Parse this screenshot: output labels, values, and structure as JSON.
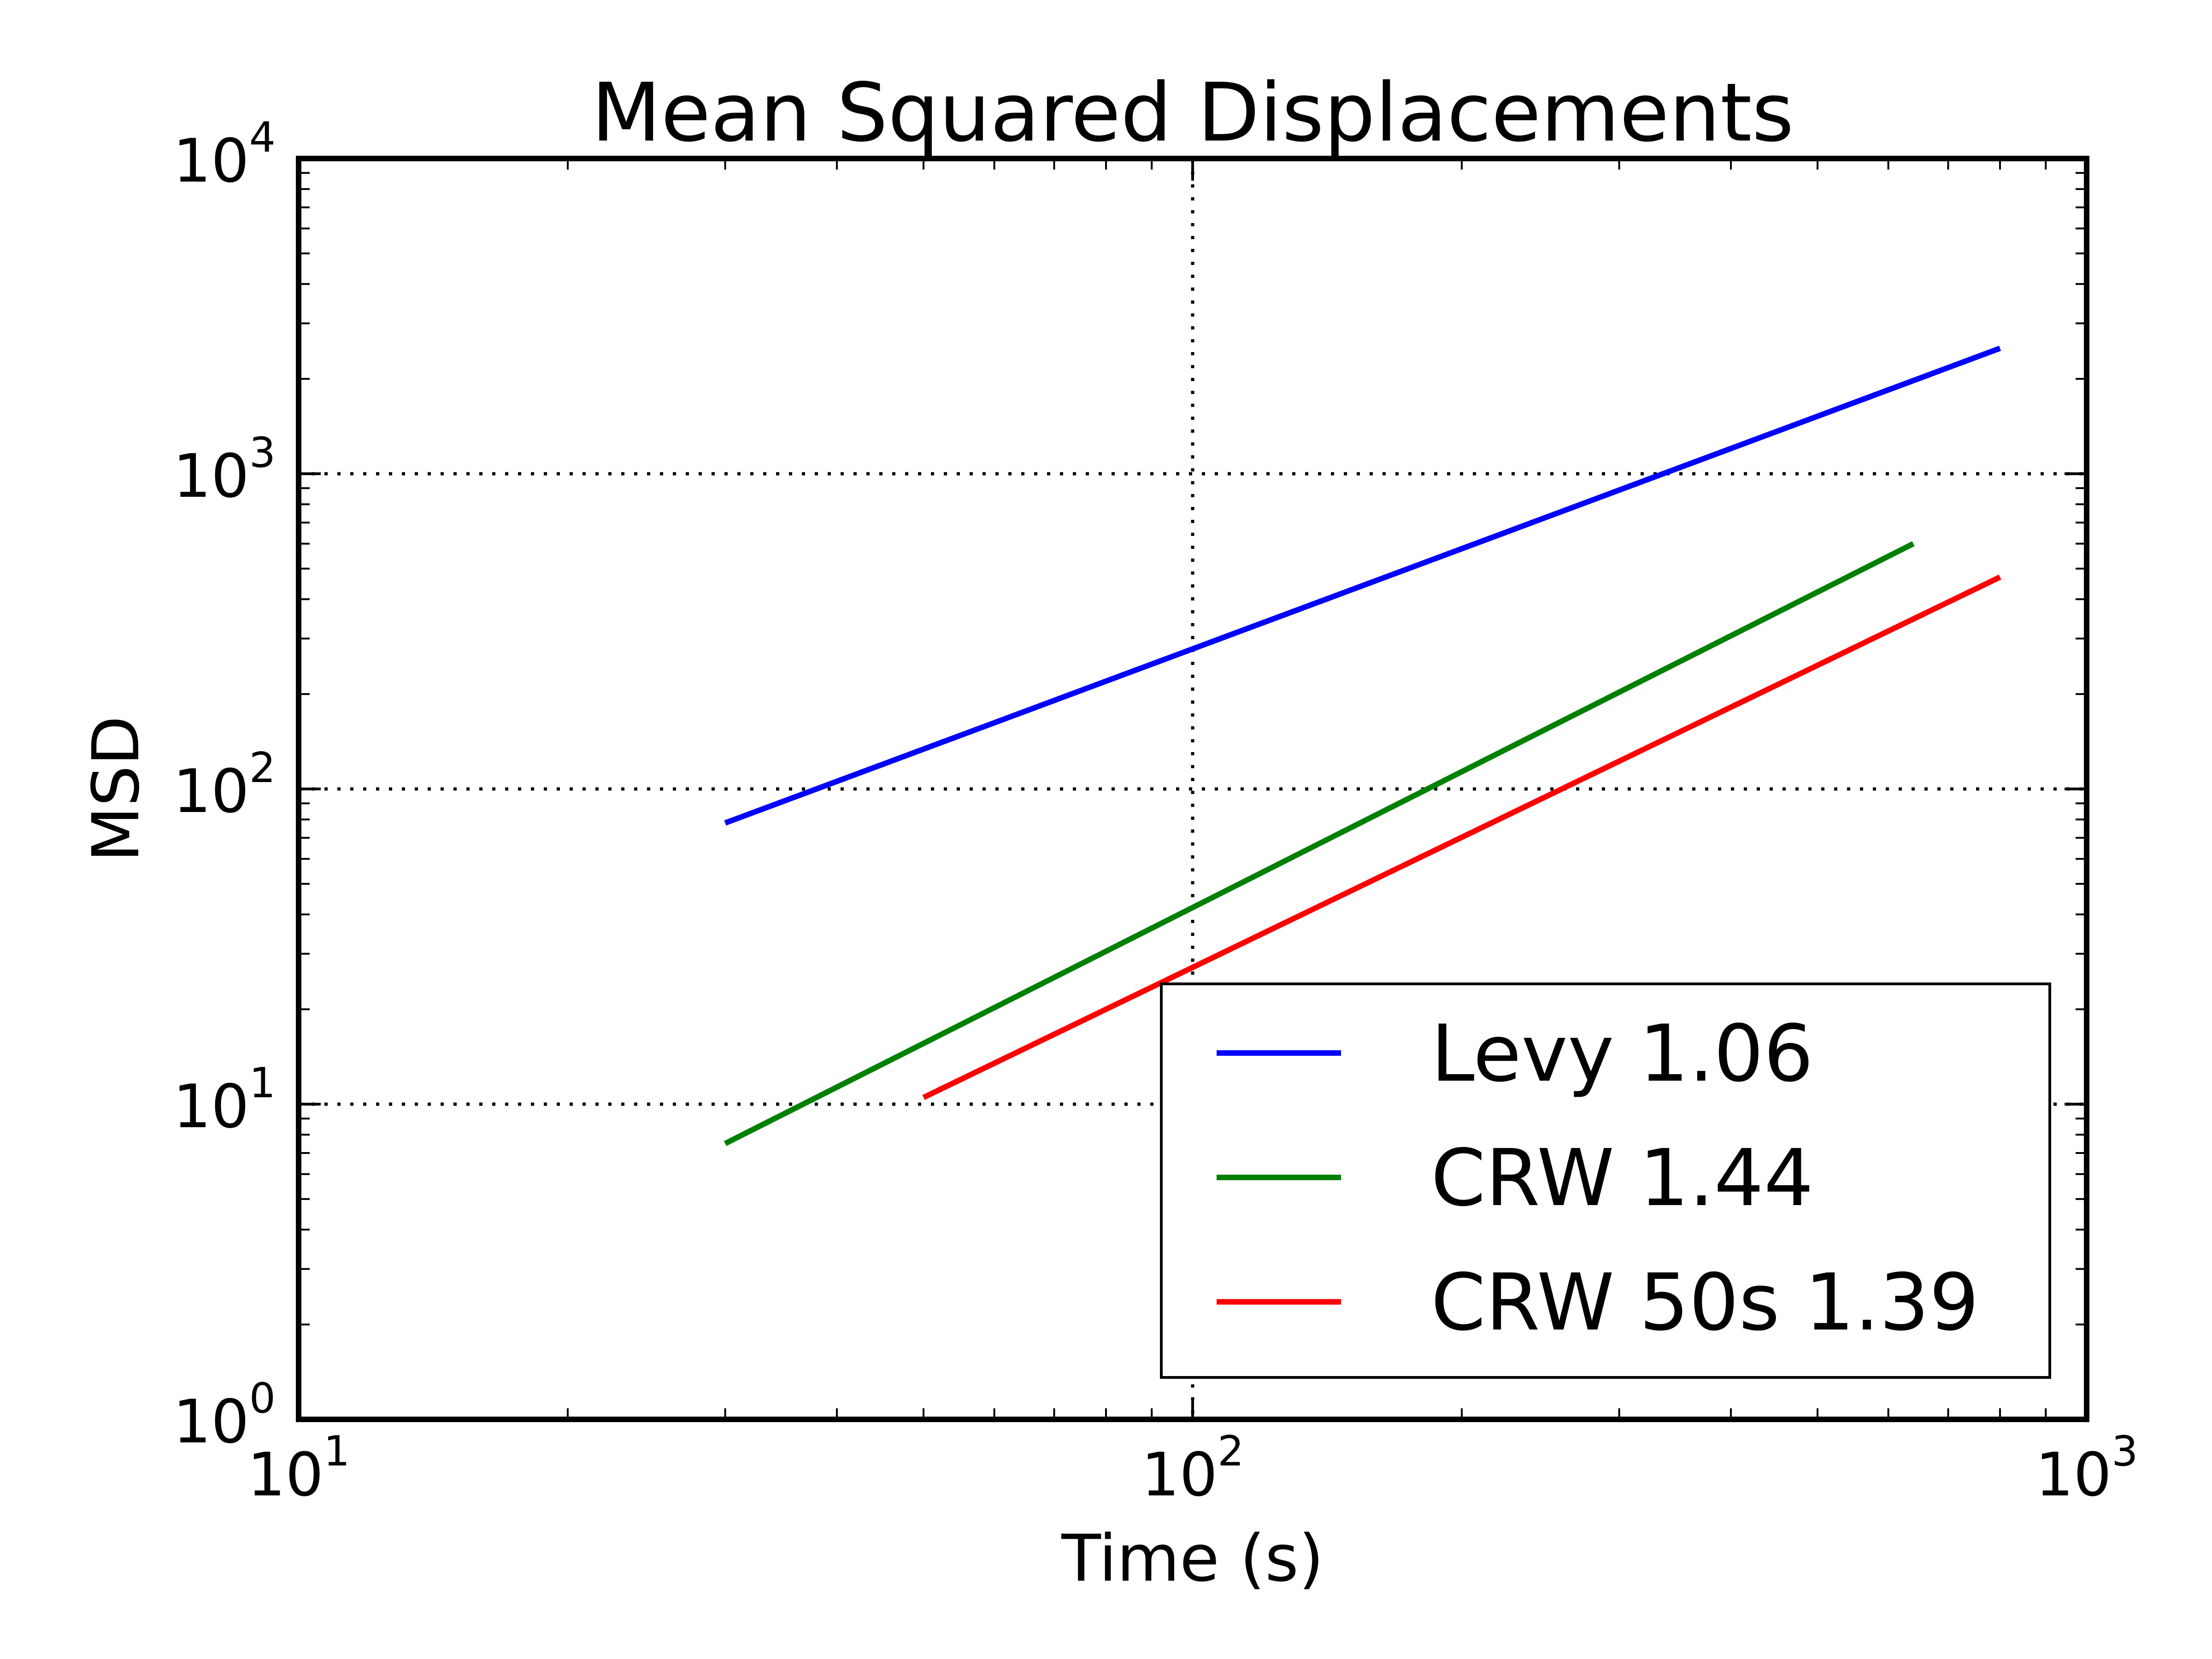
{
  "chart_data": {
    "type": "line",
    "title": "Mean Squared Displacements",
    "xlabel": "Time (s)",
    "ylabel": "MSD",
    "xscale": "log",
    "yscale": "log",
    "xlim": [
      10,
      1000
    ],
    "ylim": [
      1,
      10000
    ],
    "grid": true,
    "grid_style": "dotted",
    "x_ticks": [
      {
        "base": "10",
        "exp": "1"
      },
      {
        "base": "10",
        "exp": "2"
      },
      {
        "base": "10",
        "exp": "3"
      }
    ],
    "y_ticks": [
      {
        "base": "10",
        "exp": "0"
      },
      {
        "base": "10",
        "exp": "1"
      },
      {
        "base": "10",
        "exp": "2"
      },
      {
        "base": "10",
        "exp": "3"
      },
      {
        "base": "10",
        "exp": "4"
      }
    ],
    "legend_position": "lower-right",
    "series": [
      {
        "name": "Levy 1.06",
        "color": "#0000ff",
        "x": [
          30,
          800
        ],
        "y": [
          78,
          2500
        ]
      },
      {
        "name": "CRW 1.44",
        "color": "#008000",
        "x": [
          30,
          640
        ],
        "y": [
          7.5,
          600
        ]
      },
      {
        "name": "CRW 50s 1.39",
        "color": "#ff0000",
        "x": [
          50,
          800
        ],
        "y": [
          10.5,
          470
        ]
      }
    ]
  }
}
